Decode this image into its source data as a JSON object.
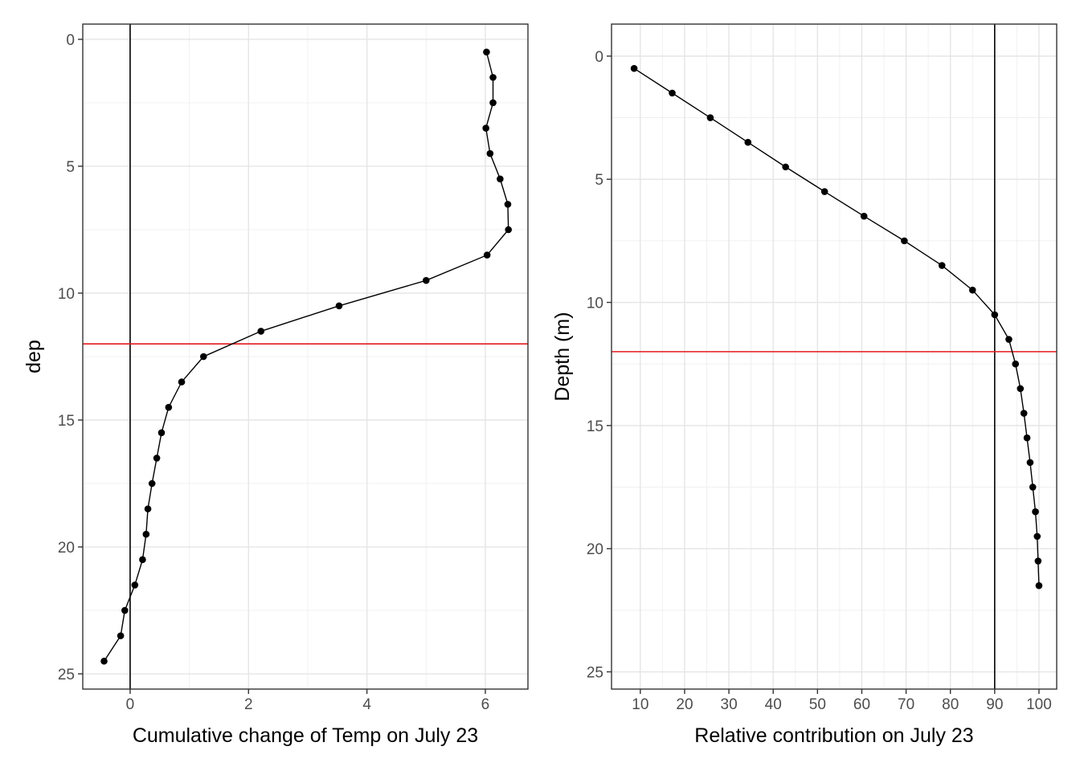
{
  "chart_data": [
    {
      "type": "line",
      "title": "",
      "xlabel": "Cumulative change of Temp on July 23",
      "ylabel": "dep",
      "xlim": [
        -0.8,
        6.72
      ],
      "ylim": [
        -0.6,
        25.6
      ],
      "y_reversed": true,
      "grid": true,
      "xticks": [
        0,
        2,
        4,
        6
      ],
      "yticks": [
        0,
        5,
        10,
        15,
        20,
        25
      ],
      "vline": {
        "x": 0,
        "color": "#000000"
      },
      "hline": {
        "y": 12,
        "color": "#e41a1c"
      },
      "series": [
        {
          "x": [
            6.02,
            6.13,
            6.13,
            6.01,
            6.08,
            6.25,
            6.38,
            6.39,
            6.03,
            5.0,
            3.53,
            2.21,
            1.24,
            0.87,
            0.65,
            0.53,
            0.45,
            0.37,
            0.3,
            0.27,
            0.21,
            0.08,
            -0.09,
            -0.16,
            -0.44
          ],
          "y": [
            0.5,
            1.5,
            2.5,
            3.5,
            4.5,
            5.5,
            6.5,
            7.5,
            8.5,
            9.5,
            10.5,
            11.5,
            12.5,
            13.5,
            14.5,
            15.5,
            16.5,
            17.5,
            18.5,
            19.5,
            20.5,
            21.5,
            22.5,
            23.5,
            24.5
          ]
        }
      ]
    },
    {
      "type": "line",
      "title": "",
      "xlabel": "Relative contribution on July 23",
      "ylabel": "Depth (m)",
      "xlim": [
        3.5,
        104
      ],
      "ylim": [
        -1.3,
        25.7
      ],
      "y_reversed": true,
      "grid": true,
      "xticks": [
        10,
        20,
        30,
        40,
        50,
        60,
        70,
        80,
        90,
        100
      ],
      "yticks": [
        0,
        5,
        10,
        15,
        20,
        25
      ],
      "vline": {
        "x": 90,
        "color": "#000000"
      },
      "hline": {
        "y": 12,
        "color": "#e41a1c"
      },
      "series": [
        {
          "x": [
            8.6,
            17.2,
            25.8,
            34.3,
            42.8,
            51.6,
            60.5,
            69.6,
            78.1,
            85.0,
            90.0,
            93.2,
            94.7,
            95.8,
            96.6,
            97.3,
            98.0,
            98.6,
            99.2,
            99.6,
            99.8,
            100.0
          ],
          "y": [
            0.5,
            1.5,
            2.5,
            3.5,
            4.5,
            5.5,
            6.5,
            7.5,
            8.5,
            9.5,
            10.5,
            11.5,
            12.5,
            13.5,
            14.5,
            15.5,
            16.5,
            17.5,
            18.5,
            19.5,
            20.5,
            21.5
          ]
        }
      ]
    }
  ]
}
